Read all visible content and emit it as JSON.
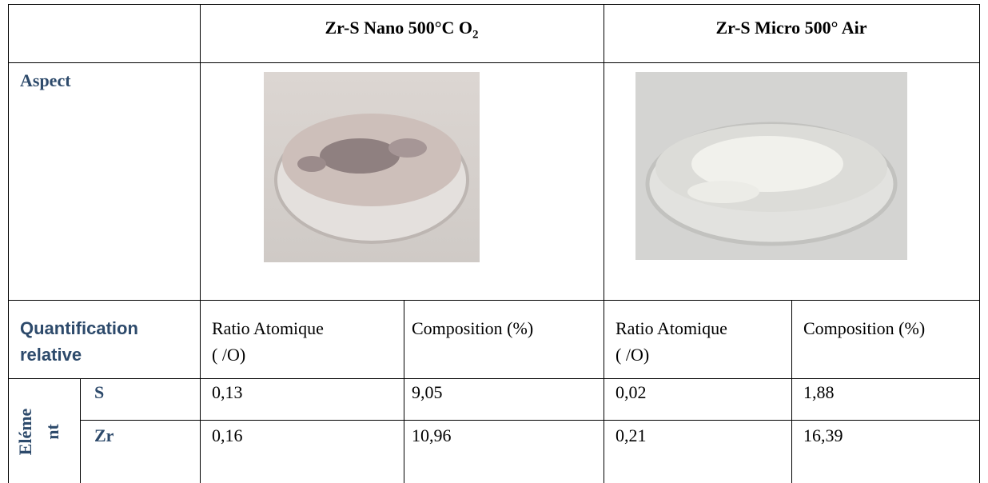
{
  "table": {
    "header": [
      {
        "text": "Zr-S Nano 500°C O",
        "sub": "2"
      },
      {
        "text": "Zr-S Micro 500° Air"
      }
    ],
    "aspect_label": "Aspect",
    "quant_label": [
      "Quantification",
      "relative"
    ],
    "subheaders": [
      [
        "Ratio Atomique",
        "( /O)"
      ],
      [
        "Composition (%)"
      ],
      [
        "Ratio Atomique",
        "( /O)"
      ],
      [
        "Composition (%)"
      ]
    ],
    "group_label": [
      "Eléme",
      "nt"
    ],
    "rows": [
      [
        "S",
        "0,13",
        "9,05",
        "0,02",
        "1,88"
      ],
      [
        "Zr",
        "0,16",
        "10,96",
        "0,21",
        "16,39"
      ]
    ]
  }
}
